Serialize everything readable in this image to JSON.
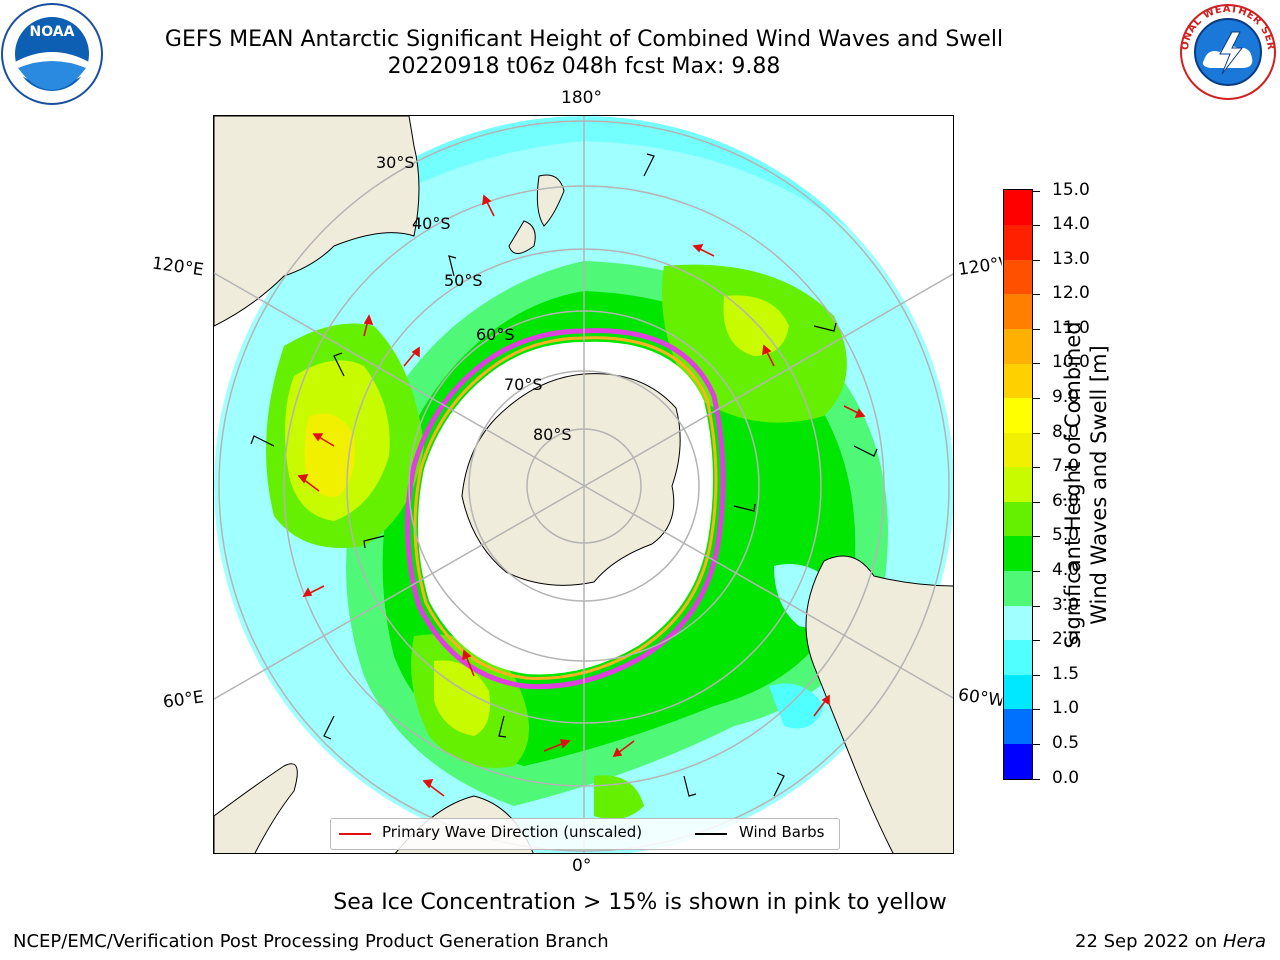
{
  "title": {
    "line1": "GEFS MEAN Antarctic Significant Height of Combined Wind Waves and Swell",
    "line2": "20220918 t06z 048h fcst   Max: 9.88"
  },
  "map": {
    "projection": "south-polar-stereographic",
    "lon_labels": {
      "top": "180°",
      "bottom": "0°",
      "left_upper": "120°E",
      "right_upper": "120°W",
      "left_lower": "60°E",
      "right_lower": "60°W"
    },
    "lat_labels": [
      "30°S",
      "40°S",
      "50°S",
      "60°S",
      "70°S",
      "80°S"
    ],
    "colors": {
      "land": "#efecdc",
      "sea_ice_low": "#ffb020",
      "sea_ice_high": "#e040e0",
      "grid": "#b4b4b4",
      "wave_arrow": "#e01010",
      "wind_barb": "#000000"
    }
  },
  "colorbar": {
    "title_line1": "Significant Height of Combined",
    "title_line2": "Wind Waves and Swell [m]",
    "ticks": [
      "0.0",
      "0.5",
      "1.0",
      "1.5",
      "2.0",
      "3.0",
      "4.0",
      "5.0",
      "6.0",
      "7.0",
      "8.0",
      "9.0",
      "10.0",
      "11.0",
      "12.0",
      "13.0",
      "14.0",
      "15.0"
    ],
    "colors": [
      "#0000ff",
      "#0070ff",
      "#00e8ff",
      "#50ffff",
      "#a0ffff",
      "#50f878",
      "#00e600",
      "#64f000",
      "#c8fa00",
      "#f0f000",
      "#ffff00",
      "#ffd000",
      "#ffb000",
      "#ff8000",
      "#ff5000",
      "#ff2000",
      "#ff0000"
    ]
  },
  "legend": {
    "wave_label": "Primary Wave Direction (unscaled)",
    "wind_label": "Wind Barbs"
  },
  "note": "Sea Ice Concentration > 15% is shown in pink to yellow",
  "footer": {
    "left": "NCEP/EMC/Verification Post Processing Product Generation Branch",
    "date": "22 Sep 2022 on ",
    "host": "Hera"
  },
  "logos": {
    "left": "NOAA",
    "right": "NATIONAL WEATHER SERVICE"
  }
}
